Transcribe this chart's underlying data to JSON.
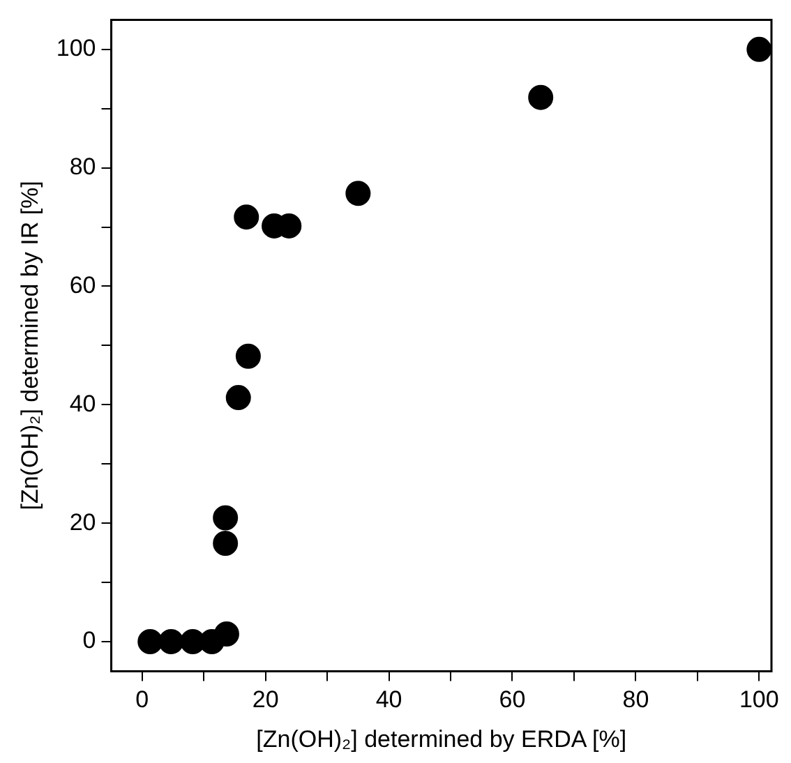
{
  "chart_data": {
    "type": "scatter",
    "xlabel": "[Zn(OH)₂] determined by ERDA [%]",
    "ylabel": "[Zn(OH)₂] determined by IR [%]",
    "x": [
      1.3,
      4.7,
      8.2,
      11.3,
      13.7,
      13.5,
      13.5,
      15.6,
      17.2,
      16.9,
      21.4,
      23.8,
      35.0,
      64.6,
      100
    ],
    "values": [
      0,
      0,
      0,
      0,
      1.3,
      16.6,
      20.9,
      41.2,
      48.2,
      71.7,
      70.2,
      70.2,
      75.7,
      91.9,
      100
    ],
    "color": "#000000",
    "marker": "circle",
    "grid": false,
    "legend": false,
    "xlim": [
      -5,
      102
    ],
    "ylim": [
      -5,
      105
    ],
    "xticks": [
      0,
      {
        "value": 10,
        "label": null
      },
      20,
      {
        "value": 30,
        "label": null
      },
      40,
      {
        "value": 50,
        "label": null
      },
      60,
      {
        "value": 70,
        "label": null
      },
      80,
      {
        "value": 90,
        "label": null
      },
      100
    ],
    "yticks": [
      0,
      {
        "value": 10,
        "label": null
      },
      20,
      {
        "value": 30,
        "label": null
      },
      40,
      {
        "value": 50,
        "label": null
      },
      60,
      {
        "value": 70,
        "label": null
      },
      80,
      {
        "value": 90,
        "label": null
      },
      100
    ]
  }
}
